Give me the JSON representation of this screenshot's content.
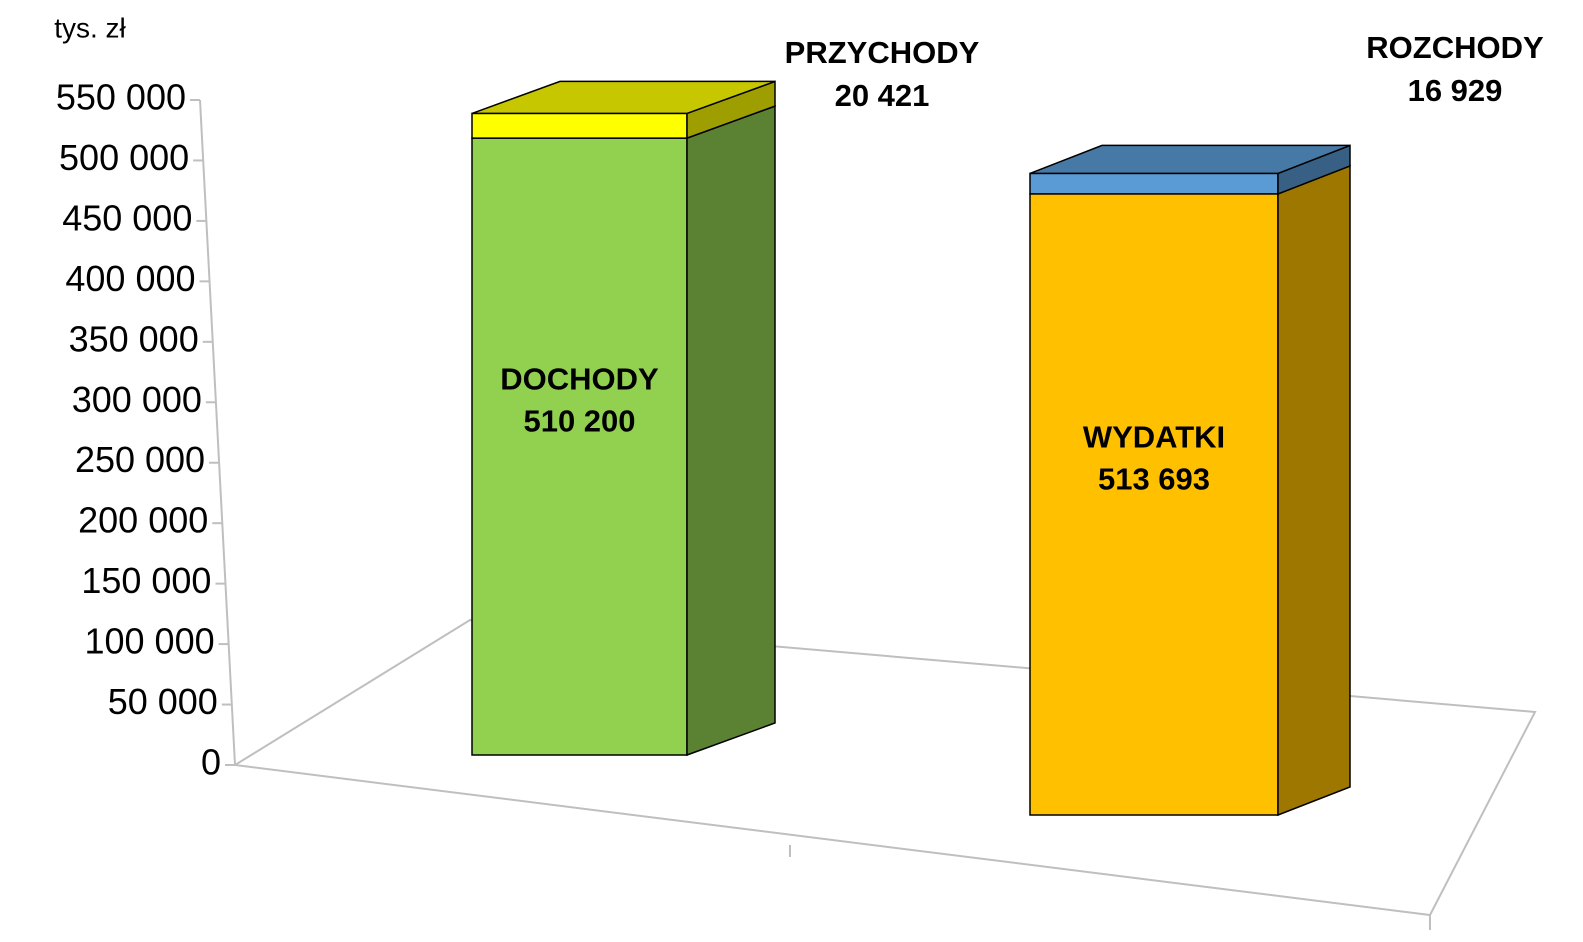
{
  "chart_data": {
    "type": "bar3d_stacked",
    "unit_label": "tys. zł",
    "ylim": [
      0,
      550000
    ],
    "yticks": [
      0,
      {
        "value": 50000,
        "label": "50 000"
      },
      {
        "value": 100000,
        "label": "100 000"
      },
      {
        "value": 150000,
        "label": "150 000"
      },
      {
        "value": 200000,
        "label": "200 000"
      },
      {
        "value": 250000,
        "label": "250 000"
      },
      {
        "value": 300000,
        "label": "300 000"
      },
      {
        "value": 350000,
        "label": "350 000"
      },
      {
        "value": 400000,
        "label": "400 000"
      },
      {
        "value": 450000,
        "label": "450 000"
      },
      {
        "value": 500000,
        "label": "500 000"
      },
      {
        "value": 550000,
        "label": "550 000"
      }
    ],
    "stacks": [
      {
        "segments": [
          {
            "name": "DOCHODY",
            "value": 510200,
            "value_label": "510 200",
            "color": "#92d050"
          },
          {
            "name": "PRZYCHODY",
            "value": 20421,
            "value_label": "20 421",
            "color": "#ffff00"
          }
        ]
      },
      {
        "segments": [
          {
            "name": "WYDATKI",
            "value": 513693,
            "value_label": "513 693",
            "color": "#ffc000"
          },
          {
            "name": "ROZCHODY",
            "value": 16929,
            "value_label": "16 929",
            "color": "#5b9bd5"
          }
        ]
      }
    ]
  }
}
